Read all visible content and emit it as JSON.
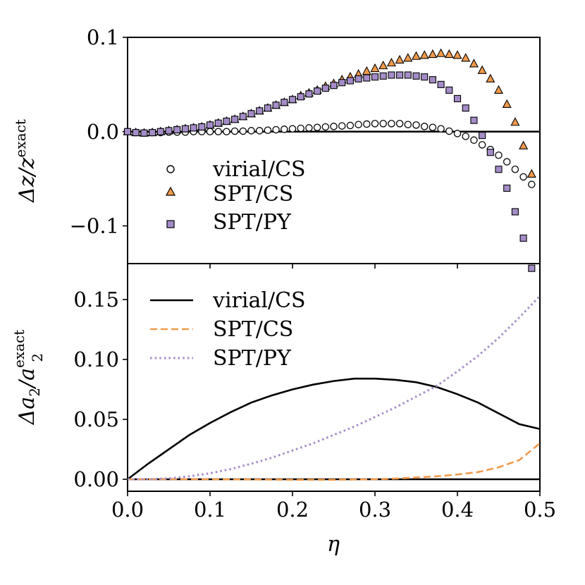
{
  "figure": {
    "xlabel": "η",
    "colors": {
      "virial_cs": "#000000",
      "spt_cs": "#f39a4a",
      "spt_py": "#a58cc8"
    }
  },
  "chart_data": [
    {
      "type": "scatter",
      "panel": "top",
      "ylabel_main": "Δz/z",
      "ylabel_sup": "exact",
      "xlim": [
        0.0,
        0.5
      ],
      "ylim": [
        -0.14,
        0.1
      ],
      "xticks": [
        0.0,
        0.1,
        0.2,
        0.3,
        0.4,
        0.5
      ],
      "yticks": [
        0.1,
        0.0,
        -0.1
      ],
      "ytick_labels": [
        "0.1",
        "0.0",
        "−0.1"
      ],
      "legend": {
        "location": "lower-left",
        "entries": [
          "virial/CS",
          "SPT/CS",
          "SPT/PY"
        ]
      },
      "zero_line": true,
      "series": [
        {
          "name": "virial/CS",
          "marker": "open-circle",
          "x": [
            0.0,
            0.01,
            0.02,
            0.03,
            0.04,
            0.05,
            0.06,
            0.07,
            0.08,
            0.09,
            0.1,
            0.11,
            0.12,
            0.13,
            0.14,
            0.15,
            0.16,
            0.17,
            0.18,
            0.19,
            0.2,
            0.21,
            0.22,
            0.23,
            0.24,
            0.25,
            0.26,
            0.27,
            0.28,
            0.29,
            0.3,
            0.31,
            0.32,
            0.33,
            0.34,
            0.35,
            0.36,
            0.37,
            0.38,
            0.39,
            0.4,
            0.41,
            0.42,
            0.43,
            0.44,
            0.45,
            0.46,
            0.47,
            0.48,
            0.49
          ],
          "y": [
            0.0,
            -0.001,
            -0.0015,
            -0.001,
            -0.001,
            -0.0005,
            -0.0005,
            -0.0005,
            0.0,
            0.0,
            0.0,
            0.0,
            0.0,
            0.0005,
            0.0005,
            0.001,
            0.001,
            0.0015,
            0.002,
            0.0025,
            0.003,
            0.0035,
            0.004,
            0.0045,
            0.005,
            0.0055,
            0.006,
            0.0065,
            0.0075,
            0.008,
            0.0085,
            0.0085,
            0.0085,
            0.0085,
            0.0075,
            0.007,
            0.0055,
            0.0045,
            0.003,
            0.0005,
            -0.002,
            -0.005,
            -0.009,
            -0.014,
            -0.019,
            -0.025,
            -0.032,
            -0.04,
            -0.048,
            -0.056
          ]
        },
        {
          "name": "SPT/CS",
          "marker": "triangle",
          "x": [
            0.0,
            0.01,
            0.02,
            0.03,
            0.04,
            0.05,
            0.06,
            0.07,
            0.08,
            0.09,
            0.1,
            0.11,
            0.12,
            0.13,
            0.14,
            0.15,
            0.16,
            0.17,
            0.18,
            0.19,
            0.2,
            0.21,
            0.22,
            0.23,
            0.24,
            0.25,
            0.26,
            0.27,
            0.28,
            0.29,
            0.3,
            0.31,
            0.32,
            0.33,
            0.34,
            0.35,
            0.36,
            0.37,
            0.38,
            0.39,
            0.4,
            0.41,
            0.42,
            0.43,
            0.44,
            0.45,
            0.46,
            0.47,
            0.48,
            0.49
          ],
          "y": [
            0.0,
            -0.001,
            -0.0015,
            -0.001,
            0.0,
            0.001,
            0.002,
            0.003,
            0.004,
            0.005,
            0.007,
            0.009,
            0.011,
            0.013,
            0.016,
            0.019,
            0.022,
            0.025,
            0.028,
            0.031,
            0.034,
            0.038,
            0.041,
            0.044,
            0.048,
            0.051,
            0.055,
            0.058,
            0.061,
            0.064,
            0.067,
            0.07,
            0.073,
            0.076,
            0.078,
            0.08,
            0.081,
            0.082,
            0.083,
            0.082,
            0.081,
            0.078,
            0.072,
            0.065,
            0.056,
            0.044,
            0.029,
            0.01,
            -0.015,
            -0.045
          ]
        },
        {
          "name": "SPT/PY",
          "marker": "square",
          "x": [
            0.0,
            0.01,
            0.02,
            0.03,
            0.04,
            0.05,
            0.06,
            0.07,
            0.08,
            0.09,
            0.1,
            0.11,
            0.12,
            0.13,
            0.14,
            0.15,
            0.16,
            0.17,
            0.18,
            0.19,
            0.2,
            0.21,
            0.22,
            0.23,
            0.24,
            0.25,
            0.26,
            0.27,
            0.28,
            0.29,
            0.3,
            0.31,
            0.32,
            0.33,
            0.34,
            0.35,
            0.36,
            0.37,
            0.38,
            0.39,
            0.4,
            0.41,
            0.42,
            0.43,
            0.44,
            0.45,
            0.46,
            0.47,
            0.48,
            0.49
          ],
          "y": [
            0.0,
            -0.001,
            -0.0015,
            -0.001,
            0.0,
            0.001,
            0.002,
            0.003,
            0.004,
            0.005,
            0.007,
            0.009,
            0.011,
            0.013,
            0.016,
            0.019,
            0.022,
            0.025,
            0.028,
            0.031,
            0.034,
            0.037,
            0.04,
            0.043,
            0.046,
            0.049,
            0.052,
            0.054,
            0.056,
            0.057,
            0.058,
            0.059,
            0.06,
            0.06,
            0.06,
            0.059,
            0.058,
            0.055,
            0.05,
            0.044,
            0.035,
            0.025,
            0.012,
            -0.004,
            -0.022,
            -0.04,
            -0.06,
            -0.085,
            -0.113,
            -0.145
          ]
        }
      ]
    },
    {
      "type": "line",
      "panel": "bottom",
      "ylabel_main": "Δa",
      "ylabel_sub": "2",
      "ylabel_den": "/a",
      "ylabel_sup": "exact",
      "xlabel": "η",
      "xlim": [
        0.0,
        0.5
      ],
      "ylim": [
        -0.01,
        0.18
      ],
      "xticks": [
        0.0,
        0.1,
        0.2,
        0.3,
        0.4,
        0.5
      ],
      "xtick_labels": [
        "0.0",
        "0.1",
        "0.2",
        "0.3",
        "0.4",
        "0.5"
      ],
      "yticks": [
        0.0,
        0.05,
        0.1,
        0.15
      ],
      "ytick_labels": [
        "0.00",
        "0.05",
        "0.10",
        "0.15"
      ],
      "legend": {
        "location": "upper-left",
        "entries": [
          "virial/CS",
          "SPT/CS",
          "SPT/PY"
        ]
      },
      "zero_line": true,
      "series": [
        {
          "name": "virial/CS",
          "style": "solid",
          "x": [
            0.0,
            0.025,
            0.05,
            0.075,
            0.1,
            0.125,
            0.15,
            0.175,
            0.2,
            0.225,
            0.25,
            0.275,
            0.3,
            0.325,
            0.35,
            0.375,
            0.4,
            0.425,
            0.45,
            0.475,
            0.5
          ],
          "values": [
            0.0,
            0.013,
            0.025,
            0.037,
            0.047,
            0.056,
            0.064,
            0.07,
            0.075,
            0.079,
            0.082,
            0.084,
            0.084,
            0.083,
            0.081,
            0.077,
            0.071,
            0.064,
            0.055,
            0.046,
            0.042
          ]
        },
        {
          "name": "SPT/CS",
          "style": "dashed",
          "x": [
            0.0,
            0.05,
            0.1,
            0.15,
            0.2,
            0.25,
            0.3,
            0.325,
            0.35,
            0.375,
            0.4,
            0.425,
            0.45,
            0.475,
            0.5
          ],
          "values": [
            0.0,
            0.0,
            0.0,
            -0.0002,
            -0.0004,
            -0.0004,
            0.0,
            0.0006,
            0.0015,
            0.0025,
            0.004,
            0.006,
            0.01,
            0.016,
            0.03
          ]
        },
        {
          "name": "SPT/PY",
          "style": "dotted",
          "x": [
            0.0,
            0.025,
            0.05,
            0.075,
            0.1,
            0.125,
            0.15,
            0.175,
            0.2,
            0.225,
            0.25,
            0.275,
            0.3,
            0.325,
            0.35,
            0.375,
            0.4,
            0.425,
            0.45,
            0.475,
            0.5
          ],
          "values": [
            0.0,
            0.0,
            0.0007,
            0.0025,
            0.005,
            0.0085,
            0.013,
            0.018,
            0.024,
            0.03,
            0.037,
            0.044,
            0.052,
            0.06,
            0.069,
            0.078,
            0.09,
            0.103,
            0.118,
            0.135,
            0.153
          ]
        }
      ]
    }
  ]
}
